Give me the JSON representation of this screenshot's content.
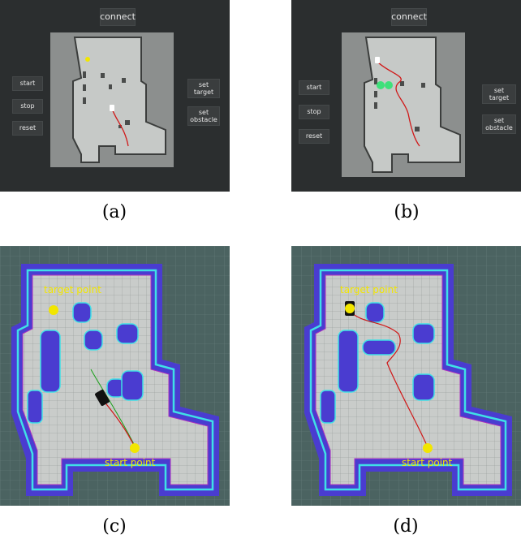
{
  "panels": {
    "a": {
      "connect": "connect",
      "start": "start",
      "stop": "stop",
      "reset": "reset",
      "set_target": "set\ntarget",
      "set_obstacle": "set\nobstacle",
      "caption": "(a)"
    },
    "b": {
      "connect": "connect",
      "start": "start",
      "stop": "stop",
      "reset": "reset",
      "set_target": "set\ntarget",
      "set_obstacle": "set\nobstacle",
      "caption": "(b)"
    },
    "c": {
      "target_label": "target point",
      "start_label": "start point",
      "caption": "(c)"
    },
    "d": {
      "target_label": "target point",
      "start_label": "start point",
      "caption": "(d)"
    }
  },
  "colors": {
    "panel_bg": "#2b2e2f",
    "map_bg": "#bfc2c0",
    "path": "#d01818",
    "marker": "#f2e600",
    "goal": "#3ee07a",
    "inflation": "#4a3cd0",
    "cyan": "#3fe0e6",
    "rviz_bg": "#4b6361"
  }
}
